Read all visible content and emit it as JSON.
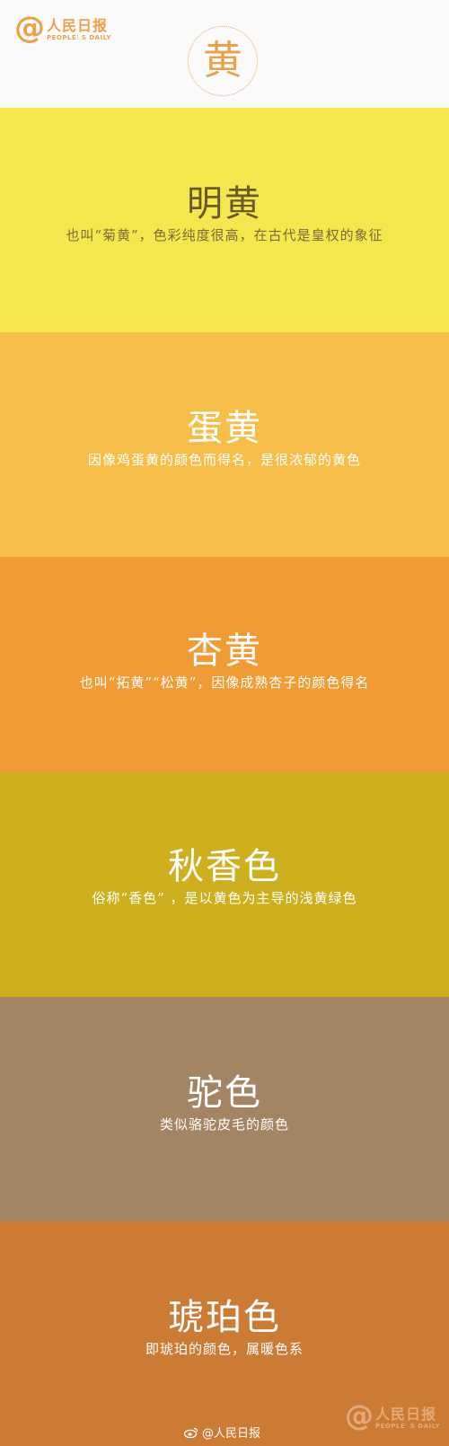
{
  "header": {
    "logo_at": "@",
    "logo_name": "人民日报",
    "logo_sub": "PEOPLE' S DAILY",
    "title": "黄"
  },
  "colors": [
    {
      "name": "明黄",
      "desc": "也叫“菊黄”，色彩纯度很高，在古代是皇权的象征",
      "hex": "#f4e74d"
    },
    {
      "name": "蛋黄",
      "desc": "因像鸡蛋黄的颜色而得名，是很浓郁的黄色",
      "hex": "#f6be48"
    },
    {
      "name": "杏黄",
      "desc": "也叫“拓黄”“松黄”，因像成熟杏子的颜色得名",
      "hex": "#f09b33"
    },
    {
      "name": "秋香色",
      "desc": "俗称“香色” ，是以黄色为主导的浅黄绿色",
      "hex": "#ceb01f"
    },
    {
      "name": "驼色",
      "desc": "类似骆驼皮毛的颜色",
      "hex": "#a38463"
    },
    {
      "name": "琥珀色",
      "desc": "即琥珀的颜色，属暖色系",
      "hex": "#cc7b35"
    }
  ],
  "footer": {
    "weibo": "@人民日报",
    "watermark_at": "@",
    "watermark_name": "人民日报",
    "watermark_sub": "PEOPLE' S DAILY"
  },
  "accent": "#e9a24a"
}
